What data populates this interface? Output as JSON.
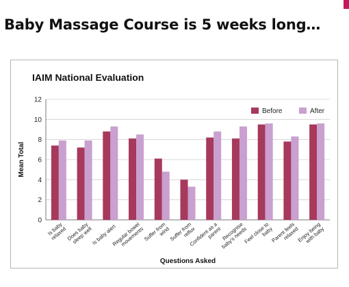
{
  "slide": {
    "title": "Baby Massage Course is 5 weeks long…",
    "accent_color": "#c2185b"
  },
  "chart_data": {
    "type": "bar",
    "title": "IAIM National Evaluation",
    "xlabel": "Questions Asked",
    "ylabel": "Mean Total",
    "ylim": [
      0,
      12
    ],
    "yticks": [
      0,
      2,
      4,
      6,
      8,
      10,
      12
    ],
    "grid": true,
    "legend_position": "top-right",
    "categories": [
      [
        "Is baby",
        "relaxed"
      ],
      [
        "Does baby",
        "sleep well"
      ],
      [
        "Is baby alert"
      ],
      [
        "Regular bowel",
        "movements"
      ],
      [
        "Suffer from",
        "wind"
      ],
      [
        "Suffer from",
        "reflux"
      ],
      [
        "Confident as a",
        "parent"
      ],
      [
        "Recognise",
        "baby's needs"
      ],
      [
        "Feel close to",
        "baby"
      ],
      [
        "Parent feels",
        "relaxed"
      ],
      [
        "Enjoy being",
        "with baby"
      ]
    ],
    "series": [
      {
        "name": "Before",
        "color": "#a6395c",
        "values": [
          7.4,
          7.2,
          8.8,
          8.1,
          6.1,
          4.0,
          8.2,
          8.1,
          9.5,
          7.8,
          9.5
        ]
      },
      {
        "name": "After",
        "color": "#c9a0cf",
        "values": [
          7.9,
          7.9,
          9.3,
          8.5,
          4.8,
          3.3,
          8.8,
          9.3,
          9.6,
          8.3,
          9.6
        ]
      }
    ]
  }
}
